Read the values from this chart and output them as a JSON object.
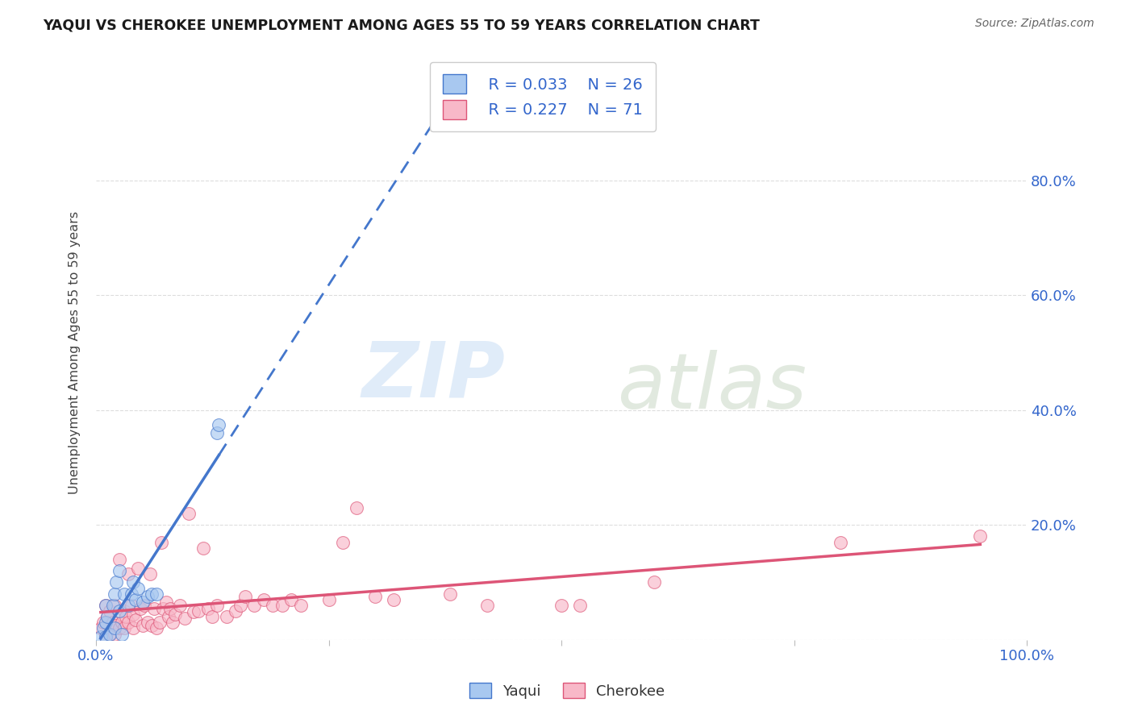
{
  "title": "YAQUI VS CHEROKEE UNEMPLOYMENT AMONG AGES 55 TO 59 YEARS CORRELATION CHART",
  "source": "Source: ZipAtlas.com",
  "ylabel": "Unemployment Among Ages 55 to 59 years",
  "xlim": [
    0,
    1.0
  ],
  "ylim": [
    0,
    1.0
  ],
  "yaqui_color": "#a8c8f0",
  "cherokee_color": "#f8b8c8",
  "yaqui_line_color": "#4477cc",
  "cherokee_line_color": "#dd5577",
  "yaqui_R": 0.033,
  "yaqui_N": 26,
  "cherokee_R": 0.227,
  "cherokee_N": 71,
  "yaqui_scatter_x": [
    0.005,
    0.008,
    0.01,
    0.01,
    0.01,
    0.012,
    0.015,
    0.018,
    0.02,
    0.02,
    0.022,
    0.025,
    0.025,
    0.028,
    0.03,
    0.035,
    0.038,
    0.04,
    0.042,
    0.045,
    0.05,
    0.055,
    0.06,
    0.065,
    0.13,
    0.132
  ],
  "yaqui_scatter_y": [
    0.005,
    0.02,
    0.005,
    0.03,
    0.06,
    0.04,
    0.01,
    0.06,
    0.02,
    0.08,
    0.1,
    0.05,
    0.12,
    0.01,
    0.08,
    0.06,
    0.08,
    0.1,
    0.07,
    0.09,
    0.065,
    0.075,
    0.08,
    0.08,
    0.36,
    0.375
  ],
  "cherokee_scatter_x": [
    0.005,
    0.008,
    0.01,
    0.01,
    0.012,
    0.015,
    0.015,
    0.018,
    0.02,
    0.02,
    0.022,
    0.025,
    0.025,
    0.028,
    0.03,
    0.03,
    0.032,
    0.035,
    0.035,
    0.038,
    0.04,
    0.04,
    0.042,
    0.045,
    0.048,
    0.05,
    0.052,
    0.055,
    0.058,
    0.06,
    0.062,
    0.065,
    0.068,
    0.07,
    0.072,
    0.075,
    0.078,
    0.08,
    0.082,
    0.085,
    0.09,
    0.095,
    0.1,
    0.105,
    0.11,
    0.115,
    0.12,
    0.125,
    0.13,
    0.14,
    0.15,
    0.155,
    0.16,
    0.17,
    0.18,
    0.19,
    0.2,
    0.21,
    0.22,
    0.25,
    0.265,
    0.28,
    0.3,
    0.32,
    0.38,
    0.42,
    0.5,
    0.52,
    0.6,
    0.8,
    0.95
  ],
  "cherokee_scatter_y": [
    0.02,
    0.03,
    0.005,
    0.06,
    0.04,
    0.01,
    0.05,
    0.03,
    0.01,
    0.06,
    0.025,
    0.02,
    0.14,
    0.03,
    0.02,
    0.05,
    0.04,
    0.03,
    0.115,
    0.06,
    0.02,
    0.045,
    0.035,
    0.125,
    0.055,
    0.025,
    0.06,
    0.03,
    0.115,
    0.025,
    0.055,
    0.02,
    0.03,
    0.17,
    0.055,
    0.065,
    0.04,
    0.055,
    0.03,
    0.045,
    0.06,
    0.038,
    0.22,
    0.048,
    0.05,
    0.16,
    0.055,
    0.04,
    0.06,
    0.04,
    0.05,
    0.06,
    0.075,
    0.06,
    0.07,
    0.06,
    0.06,
    0.07,
    0.06,
    0.07,
    0.17,
    0.23,
    0.075,
    0.07,
    0.08,
    0.06,
    0.06,
    0.06,
    0.1,
    0.17,
    0.18
  ],
  "background_color": "#ffffff",
  "grid_color": "#dddddd",
  "yaqui_line_x_solid_end": 0.13,
  "cherokee_line_x_end": 0.95
}
